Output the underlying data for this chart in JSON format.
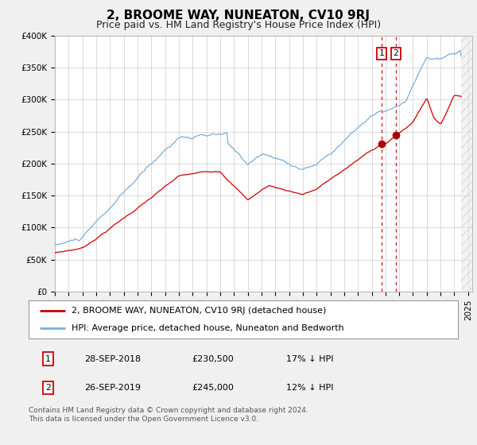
{
  "title": "2, BROOME WAY, NUNEATON, CV10 9RJ",
  "subtitle": "Price paid vs. HM Land Registry's House Price Index (HPI)",
  "ylim": [
    0,
    400000
  ],
  "yticks": [
    0,
    50000,
    100000,
    150000,
    200000,
    250000,
    300000,
    350000,
    400000
  ],
  "ytick_labels": [
    "£0",
    "£50K",
    "£100K",
    "£150K",
    "£200K",
    "£250K",
    "£300K",
    "£350K",
    "£400K"
  ],
  "xlim_start": 1995.0,
  "xlim_end": 2025.3,
  "red_line_color": "#cc0000",
  "blue_line_color": "#7aadda",
  "marker_color": "#aa0000",
  "vline_color": "#cc0000",
  "marker1_x": 2018.74,
  "marker1_y": 230500,
  "marker2_x": 2019.74,
  "marker2_y": 245000,
  "vline1_x": 2018.74,
  "vline2_x": 2019.74,
  "legend_line1": "2, BROOME WAY, NUNEATON, CV10 9RJ (detached house)",
  "legend_line2": "HPI: Average price, detached house, Nuneaton and Bedworth",
  "table_rows": [
    [
      "1",
      "28-SEP-2018",
      "£230,500",
      "17% ↓ HPI"
    ],
    [
      "2",
      "26-SEP-2019",
      "£245,000",
      "12% ↓ HPI"
    ]
  ],
  "footnote": "Contains HM Land Registry data © Crown copyright and database right 2024.\nThis data is licensed under the Open Government Licence v3.0.",
  "bg_color": "#f0f0f0",
  "plot_bg_color": "#ffffff",
  "grid_color": "#cccccc",
  "title_fontsize": 11,
  "subtitle_fontsize": 9,
  "tick_fontsize": 7.5,
  "legend_fontsize": 8,
  "table_fontsize": 8,
  "footnote_fontsize": 6.5
}
